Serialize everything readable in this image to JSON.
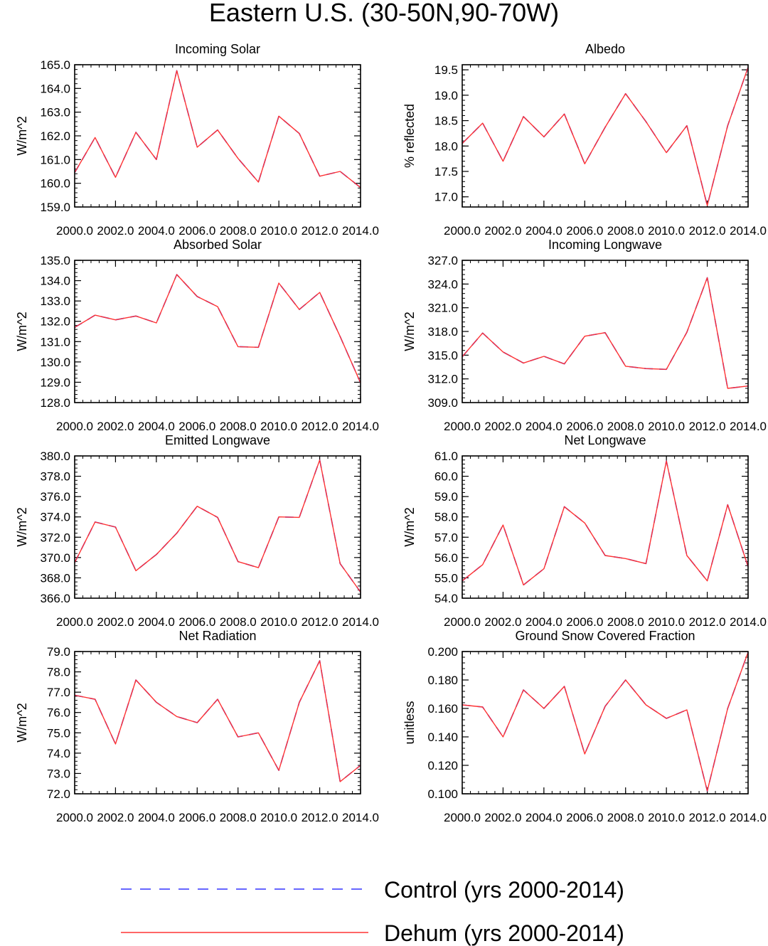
{
  "figure": {
    "title": "Eastern U.S. (30-50N,90-70W)",
    "legend": [
      {
        "label": "Control (yrs 2000-2014)",
        "color": "#3333ff",
        "style": "dashed"
      },
      {
        "label": "Dehum (yrs 2000-2014)",
        "color": "#ff3333",
        "style": "solid"
      }
    ]
  },
  "chart_data": [
    {
      "type": "line",
      "title": "Incoming Solar",
      "ylabel": "W/m^2",
      "xlabel": "",
      "xlim": [
        2000,
        2014
      ],
      "ylim": [
        159,
        165
      ],
      "xticks": [
        "2000.0",
        "2002.0",
        "2004.0",
        "2006.0",
        "2008.0",
        "2010.0",
        "2012.0",
        "2014.0"
      ],
      "yticks": [
        "159.0",
        "160.0",
        "161.0",
        "162.0",
        "163.0",
        "164.0",
        "165.0"
      ],
      "x": [
        2000,
        2001,
        2002,
        2003,
        2004,
        2005,
        2006,
        2007,
        2008,
        2009,
        2010,
        2011,
        2012,
        2013,
        2014
      ],
      "series": [
        {
          "name": "Control (yrs 2000-2014)",
          "values": [
            160.45,
            161.93,
            160.25,
            162.15,
            161.0,
            164.75,
            161.52,
            162.25,
            161.05,
            160.05,
            162.83,
            162.1,
            160.3,
            160.5,
            159.82
          ]
        },
        {
          "name": "Dehum (yrs 2000-2014)",
          "values": [
            160.45,
            161.93,
            160.25,
            162.15,
            161.0,
            164.75,
            161.52,
            162.25,
            161.05,
            160.05,
            162.83,
            162.1,
            160.3,
            160.5,
            159.82
          ]
        }
      ]
    },
    {
      "type": "line",
      "title": "Albedo",
      "ylabel": "% reflected",
      "xlabel": "",
      "xlim": [
        2000,
        2014
      ],
      "ylim": [
        16.8,
        19.6
      ],
      "xticks": [
        "2000.0",
        "2002.0",
        "2004.0",
        "2006.0",
        "2008.0",
        "2010.0",
        "2012.0",
        "2014.0"
      ],
      "yticks": [
        "17.0",
        "17.5",
        "18.0",
        "18.5",
        "19.0",
        "19.5"
      ],
      "x": [
        2000,
        2001,
        2002,
        2003,
        2004,
        2005,
        2006,
        2007,
        2008,
        2009,
        2010,
        2011,
        2012,
        2013,
        2014
      ],
      "series": [
        {
          "name": "Control (yrs 2000-2014)",
          "values": [
            18.05,
            18.45,
            17.7,
            18.58,
            18.18,
            18.63,
            17.65,
            18.37,
            19.03,
            18.48,
            17.87,
            18.4,
            16.83,
            18.4,
            19.55
          ]
        },
        {
          "name": "Dehum (yrs 2000-2014)",
          "values": [
            18.05,
            18.45,
            17.7,
            18.58,
            18.18,
            18.63,
            17.65,
            18.37,
            19.03,
            18.48,
            17.87,
            18.4,
            16.83,
            18.4,
            19.55
          ]
        }
      ]
    },
    {
      "type": "line",
      "title": "Absorbed Solar",
      "ylabel": "W/m^2",
      "xlabel": "",
      "xlim": [
        2000,
        2014
      ],
      "ylim": [
        128,
        135
      ],
      "xticks": [
        "2000.0",
        "2002.0",
        "2004.0",
        "2006.0",
        "2008.0",
        "2010.0",
        "2012.0",
        "2014.0"
      ],
      "yticks": [
        "128.0",
        "129.0",
        "130.0",
        "131.0",
        "132.0",
        "133.0",
        "134.0",
        "135.0"
      ],
      "x": [
        2000,
        2001,
        2002,
        2003,
        2004,
        2005,
        2006,
        2007,
        2008,
        2009,
        2010,
        2011,
        2012,
        2013,
        2014
      ],
      "series": [
        {
          "name": "Control (yrs 2000-2014)",
          "values": [
            131.7,
            132.3,
            132.07,
            132.26,
            131.92,
            134.3,
            133.22,
            132.72,
            130.75,
            130.72,
            133.88,
            132.58,
            133.42,
            131.25,
            128.97
          ]
        },
        {
          "name": "Dehum (yrs 2000-2014)",
          "values": [
            131.7,
            132.3,
            132.07,
            132.26,
            131.92,
            134.3,
            133.22,
            132.72,
            130.75,
            130.72,
            133.88,
            132.58,
            133.42,
            131.25,
            128.97
          ]
        }
      ]
    },
    {
      "type": "line",
      "title": "Incoming Longwave",
      "ylabel": "W/m^2",
      "xlabel": "",
      "xlim": [
        2000,
        2014
      ],
      "ylim": [
        309,
        327
      ],
      "xticks": [
        "2000.0",
        "2002.0",
        "2004.0",
        "2006.0",
        "2008.0",
        "2010.0",
        "2012.0",
        "2014.0"
      ],
      "yticks": [
        "309.0",
        "312.0",
        "315.0",
        "318.0",
        "321.0",
        "324.0",
        "327.0"
      ],
      "x": [
        2000,
        2001,
        2002,
        2003,
        2004,
        2005,
        2006,
        2007,
        2008,
        2009,
        2010,
        2011,
        2012,
        2013,
        2014
      ],
      "series": [
        {
          "name": "Control (yrs 2000-2014)",
          "values": [
            314.8,
            317.8,
            315.4,
            314.0,
            314.85,
            313.9,
            317.4,
            317.85,
            313.6,
            313.3,
            313.2,
            317.9,
            324.8,
            310.8,
            311.1
          ]
        },
        {
          "name": "Dehum (yrs 2000-2014)",
          "values": [
            314.8,
            317.8,
            315.4,
            314.0,
            314.85,
            313.9,
            317.4,
            317.85,
            313.6,
            313.3,
            313.2,
            317.9,
            324.8,
            310.8,
            311.1
          ]
        }
      ]
    },
    {
      "type": "line",
      "title": "Emitted Longwave",
      "ylabel": "W/m^2",
      "xlabel": "",
      "xlim": [
        2000,
        2014
      ],
      "ylim": [
        366,
        380
      ],
      "xticks": [
        "2000.0",
        "2002.0",
        "2004.0",
        "2006.0",
        "2008.0",
        "2010.0",
        "2012.0",
        "2014.0"
      ],
      "yticks": [
        "366.0",
        "368.0",
        "370.0",
        "372.0",
        "374.0",
        "376.0",
        "378.0",
        "380.0"
      ],
      "x": [
        2000,
        2001,
        2002,
        2003,
        2004,
        2005,
        2006,
        2007,
        2008,
        2009,
        2010,
        2011,
        2012,
        2013,
        2014
      ],
      "series": [
        {
          "name": "Control (yrs 2000-2014)",
          "values": [
            369.5,
            373.5,
            373.0,
            368.7,
            370.3,
            372.4,
            375.05,
            373.95,
            369.6,
            369.0,
            374.0,
            373.95,
            379.6,
            369.4,
            366.6
          ]
        },
        {
          "name": "Dehum (yrs 2000-2014)",
          "values": [
            369.5,
            373.5,
            373.0,
            368.7,
            370.3,
            372.4,
            375.05,
            373.95,
            369.6,
            369.0,
            374.0,
            373.95,
            379.6,
            369.4,
            366.6
          ]
        }
      ]
    },
    {
      "type": "line",
      "title": "Net Longwave",
      "ylabel": "W/m^2",
      "xlabel": "",
      "xlim": [
        2000,
        2014
      ],
      "ylim": [
        54,
        61
      ],
      "xticks": [
        "2000.0",
        "2002.0",
        "2004.0",
        "2006.0",
        "2008.0",
        "2010.0",
        "2012.0",
        "2014.0"
      ],
      "yticks": [
        "54.0",
        "55.0",
        "56.0",
        "57.0",
        "58.0",
        "59.0",
        "60.0",
        "61.0"
      ],
      "x": [
        2000,
        2001,
        2002,
        2003,
        2004,
        2005,
        2006,
        2007,
        2008,
        2009,
        2010,
        2011,
        2012,
        2013,
        2014
      ],
      "series": [
        {
          "name": "Control (yrs 2000-2014)",
          "values": [
            54.85,
            55.65,
            57.6,
            54.65,
            55.45,
            58.5,
            57.7,
            56.1,
            55.95,
            55.7,
            60.75,
            56.1,
            54.85,
            58.6,
            55.55
          ]
        },
        {
          "name": "Dehum (yrs 2000-2014)",
          "values": [
            54.85,
            55.65,
            57.6,
            54.65,
            55.45,
            58.5,
            57.7,
            56.1,
            55.95,
            55.7,
            60.75,
            56.1,
            54.85,
            58.6,
            55.55
          ]
        }
      ]
    },
    {
      "type": "line",
      "title": "Net Radiation",
      "ylabel": "W/m^2",
      "xlabel": "",
      "xlim": [
        2000,
        2014
      ],
      "ylim": [
        72,
        79
      ],
      "xticks": [
        "2000.0",
        "2002.0",
        "2004.0",
        "2006.0",
        "2008.0",
        "2010.0",
        "2012.0",
        "2014.0"
      ],
      "yticks": [
        "72.0",
        "73.0",
        "74.0",
        "75.0",
        "76.0",
        "77.0",
        "78.0",
        "79.0"
      ],
      "x": [
        2000,
        2001,
        2002,
        2003,
        2004,
        2005,
        2006,
        2007,
        2008,
        2009,
        2010,
        2011,
        2012,
        2013,
        2014
      ],
      "series": [
        {
          "name": "Control (yrs 2000-2014)",
          "values": [
            76.85,
            76.65,
            74.45,
            77.6,
            76.5,
            75.8,
            75.5,
            76.65,
            74.8,
            75.0,
            73.15,
            76.5,
            78.55,
            72.6,
            73.4
          ]
        },
        {
          "name": "Dehum (yrs 2000-2014)",
          "values": [
            76.85,
            76.65,
            74.45,
            77.6,
            76.5,
            75.8,
            75.5,
            76.65,
            74.8,
            75.0,
            73.15,
            76.5,
            78.55,
            72.6,
            73.4
          ]
        }
      ]
    },
    {
      "type": "line",
      "title": "Ground Snow Covered Fraction",
      "ylabel": "unitless",
      "xlabel": "",
      "xlim": [
        2000,
        2014
      ],
      "ylim": [
        0.1,
        0.2
      ],
      "xticks": [
        "2000.0",
        "2002.0",
        "2004.0",
        "2006.0",
        "2008.0",
        "2010.0",
        "2012.0",
        "2014.0"
      ],
      "yticks": [
        "0.100",
        "0.120",
        "0.140",
        "0.160",
        "0.180",
        "0.200"
      ],
      "x": [
        2000,
        2001,
        2002,
        2003,
        2004,
        2005,
        2006,
        2007,
        2008,
        2009,
        2010,
        2011,
        2012,
        2013,
        2014
      ],
      "series": [
        {
          "name": "Control (yrs 2000-2014)",
          "values": [
            0.1625,
            0.161,
            0.14,
            0.173,
            0.16,
            0.1755,
            0.128,
            0.1615,
            0.18,
            0.1625,
            0.153,
            0.159,
            0.102,
            0.16,
            0.1995
          ]
        },
        {
          "name": "Dehum (yrs 2000-2014)",
          "values": [
            0.1625,
            0.161,
            0.14,
            0.173,
            0.16,
            0.1755,
            0.128,
            0.1615,
            0.18,
            0.1625,
            0.153,
            0.159,
            0.102,
            0.16,
            0.1995
          ]
        }
      ]
    }
  ]
}
